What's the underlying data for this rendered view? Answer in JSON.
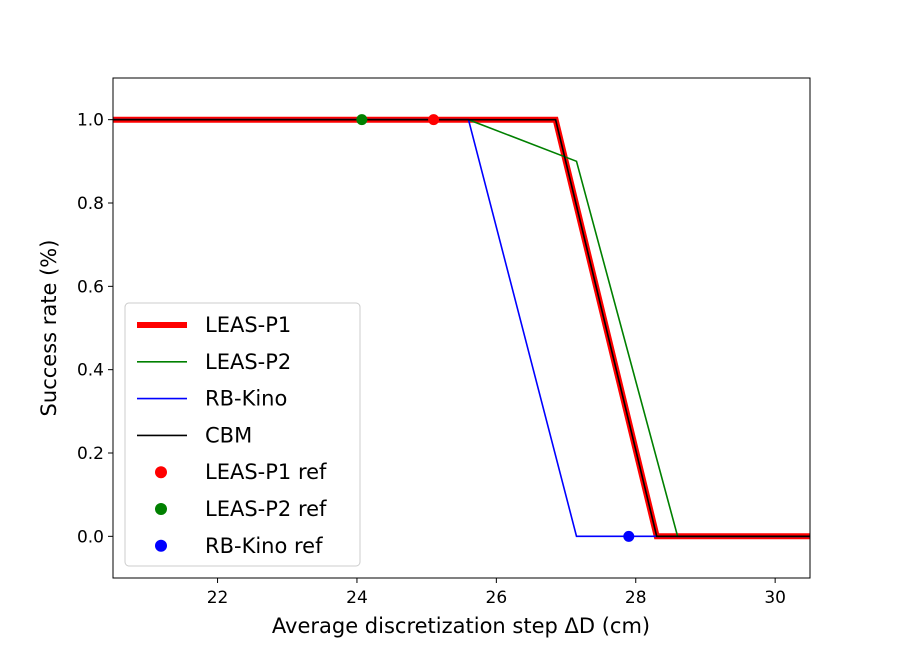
{
  "chart_data": {
    "type": "line",
    "xlabel": "Average discretization step ΔD (cm)",
    "ylabel": "Success rate (%)",
    "xlim": [
      20.5,
      30.5
    ],
    "ylim": [
      -0.1,
      1.1
    ],
    "xticks": [
      22,
      24,
      26,
      28,
      30
    ],
    "yticks": [
      0.0,
      0.2,
      0.4,
      0.6,
      0.8,
      1.0
    ],
    "xtick_labels": [
      "22",
      "24",
      "26",
      "28",
      "30"
    ],
    "ytick_labels": [
      "0.0",
      "0.2",
      "0.4",
      "0.6",
      "0.8",
      "1.0"
    ],
    "grid": false,
    "legend_position": "lower-left",
    "series": [
      {
        "name": "LEAS-P1",
        "kind": "line",
        "color": "#ff0000",
        "points": [
          [
            20.5,
            1.0
          ],
          [
            26.85,
            1.0
          ],
          [
            28.3,
            0.0
          ],
          [
            30.5,
            0.0
          ]
        ]
      },
      {
        "name": "LEAS-P2",
        "kind": "line",
        "color": "#008000",
        "points": [
          [
            20.5,
            1.0
          ],
          [
            25.6,
            1.0
          ],
          [
            27.15,
            0.9
          ],
          [
            28.6,
            0.0
          ],
          [
            30.5,
            0.0
          ]
        ]
      },
      {
        "name": "RB-Kino",
        "kind": "line",
        "color": "#0000ff",
        "points": [
          [
            20.5,
            1.0
          ],
          [
            25.6,
            1.0
          ],
          [
            27.15,
            0.0
          ],
          [
            30.5,
            0.0
          ]
        ]
      },
      {
        "name": "CBM",
        "kind": "line",
        "color": "#000000",
        "points": [
          [
            20.5,
            1.0
          ],
          [
            26.85,
            1.0
          ],
          [
            28.3,
            0.0
          ],
          [
            30.5,
            0.0
          ]
        ]
      },
      {
        "name": "LEAS-P1 ref",
        "kind": "point",
        "color": "#ff0000",
        "points": [
          [
            25.1,
            1.0
          ]
        ]
      },
      {
        "name": "LEAS-P2 ref",
        "kind": "point",
        "color": "#008000",
        "points": [
          [
            24.07,
            1.0
          ]
        ]
      },
      {
        "name": "RB-Kino ref",
        "kind": "point",
        "color": "#0000ff",
        "points": [
          [
            27.9,
            0.0
          ]
        ]
      }
    ]
  }
}
